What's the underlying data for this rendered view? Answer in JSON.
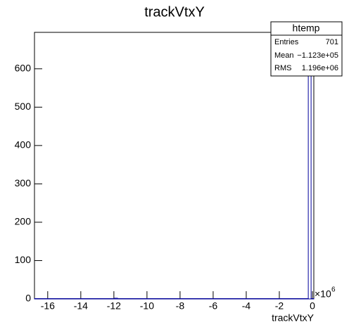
{
  "chart_data": {
    "type": "histogram",
    "title": "trackVtxY",
    "x_label": "trackVtxY",
    "x_multiplier": "×10",
    "x_multiplier_exponent": "6",
    "bins": [
      -16.8,
      -11.95,
      -11.78,
      -0.25,
      -0.08,
      0.085
    ],
    "counts": [
      0,
      1,
      0,
      650,
      0
    ],
    "color": "#000099",
    "xlim": [
      -16.8,
      0.085
    ],
    "xticks": [
      -16,
      -14,
      -12,
      -10,
      -8,
      -6,
      -4,
      -2,
      0
    ],
    "ylim": [
      0,
      695
    ],
    "yticks": [
      0,
      100,
      200,
      300,
      400,
      500,
      600
    ],
    "stats": {
      "name": "htemp",
      "rows": [
        [
          "Entries",
          "701"
        ],
        [
          "Mean",
          "−1.123e+05"
        ],
        [
          "RMS",
          "1.196e+06"
        ]
      ]
    }
  }
}
